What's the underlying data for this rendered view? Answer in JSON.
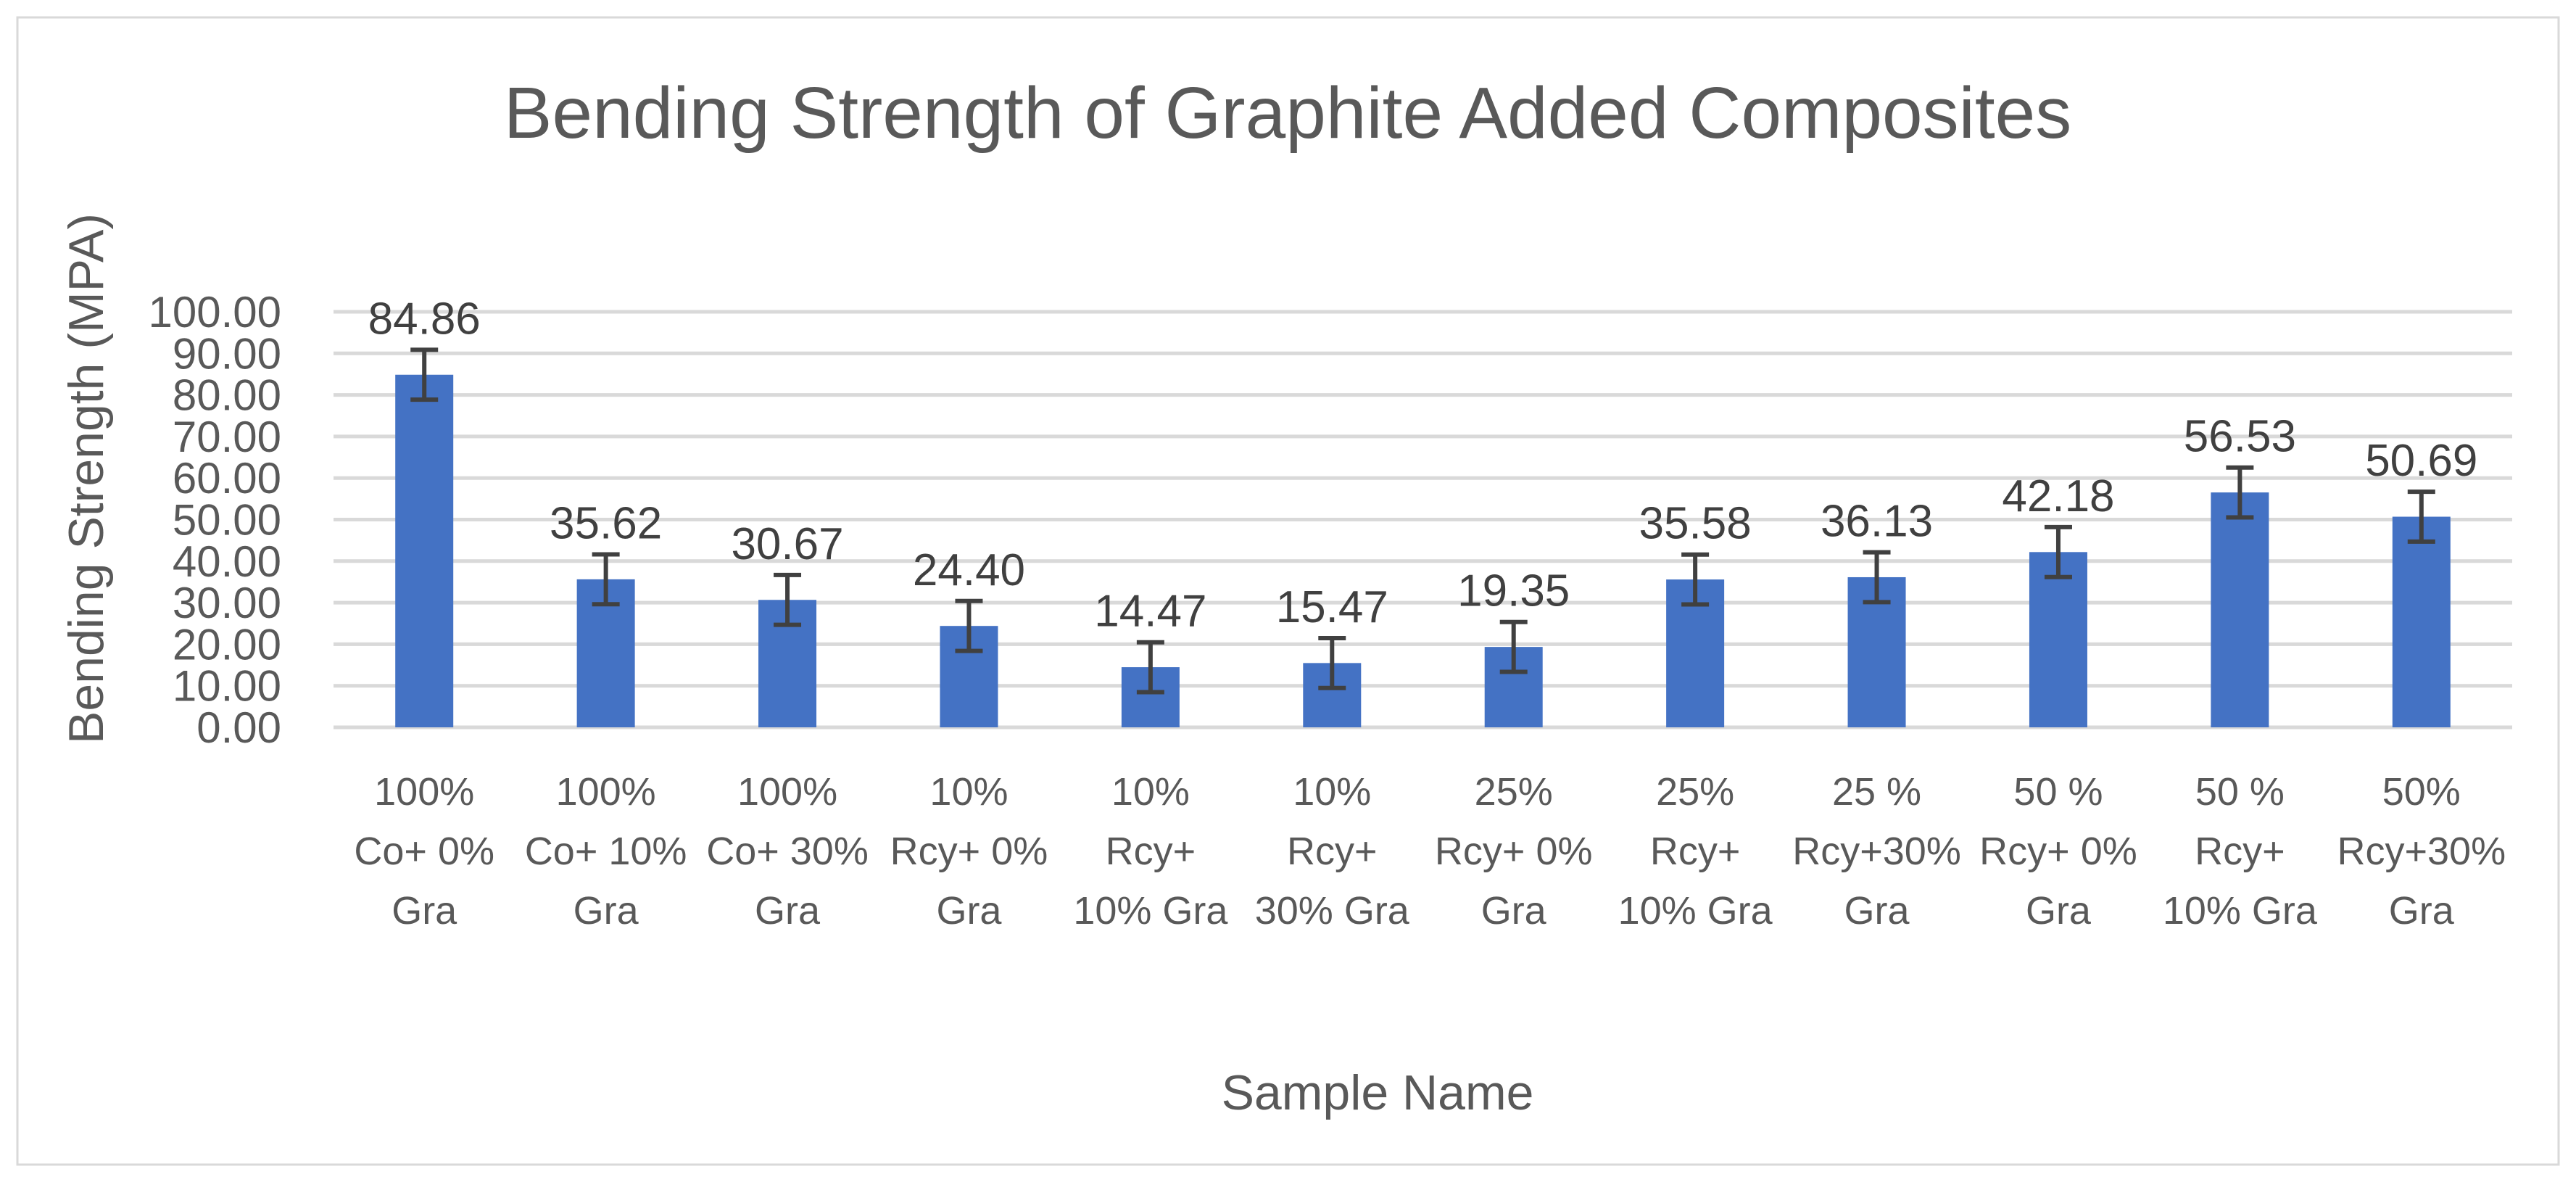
{
  "chart_data": {
    "type": "bar",
    "title": "Bending Strength of Graphite Added Composites",
    "xlabel": "Sample Name",
    "ylabel": "Bending Strength (MPA)",
    "ylim": [
      0,
      100
    ],
    "yticks": [
      "0.00",
      "10.00",
      "20.00",
      "30.00",
      "40.00",
      "50.00",
      "60.00",
      "70.00",
      "80.00",
      "90.00",
      "100.00"
    ],
    "grid": true,
    "categories": [
      [
        "100%",
        "Co+ 0%",
        "Gra"
      ],
      [
        "100%",
        "Co+ 10%",
        "Gra"
      ],
      [
        "100%",
        "Co+ 30%",
        "Gra"
      ],
      [
        "10%",
        "Rcy+ 0%",
        "Gra"
      ],
      [
        "10%",
        "Rcy+",
        "10% Gra"
      ],
      [
        "10%",
        "Rcy+",
        "30% Gra"
      ],
      [
        "25%",
        "Rcy+ 0%",
        "Gra"
      ],
      [
        "25%",
        "Rcy+",
        "10% Gra"
      ],
      [
        "25 %",
        "Rcy+30%",
        "Gra"
      ],
      [
        "50 %",
        "Rcy+ 0%",
        "Gra"
      ],
      [
        "50 %",
        "Rcy+",
        "10% Gra"
      ],
      [
        "50%",
        "Rcy+30%",
        "Gra"
      ]
    ],
    "values": [
      84.86,
      35.62,
      30.67,
      24.4,
      14.47,
      15.47,
      19.35,
      35.58,
      36.13,
      42.18,
      56.53,
      50.69
    ],
    "value_labels": [
      "84.86",
      "35.62",
      "30.67",
      "24.40",
      "14.47",
      "15.47",
      "19.35",
      "35.58",
      "36.13",
      "42.18",
      "56.53",
      "50.69"
    ],
    "error": [
      6,
      6,
      6,
      6,
      6,
      6,
      6,
      6,
      6,
      6,
      6,
      6
    ],
    "bar_color": "#4472C4",
    "error_color": "#404040",
    "grid_color": "#D9D9D9"
  }
}
